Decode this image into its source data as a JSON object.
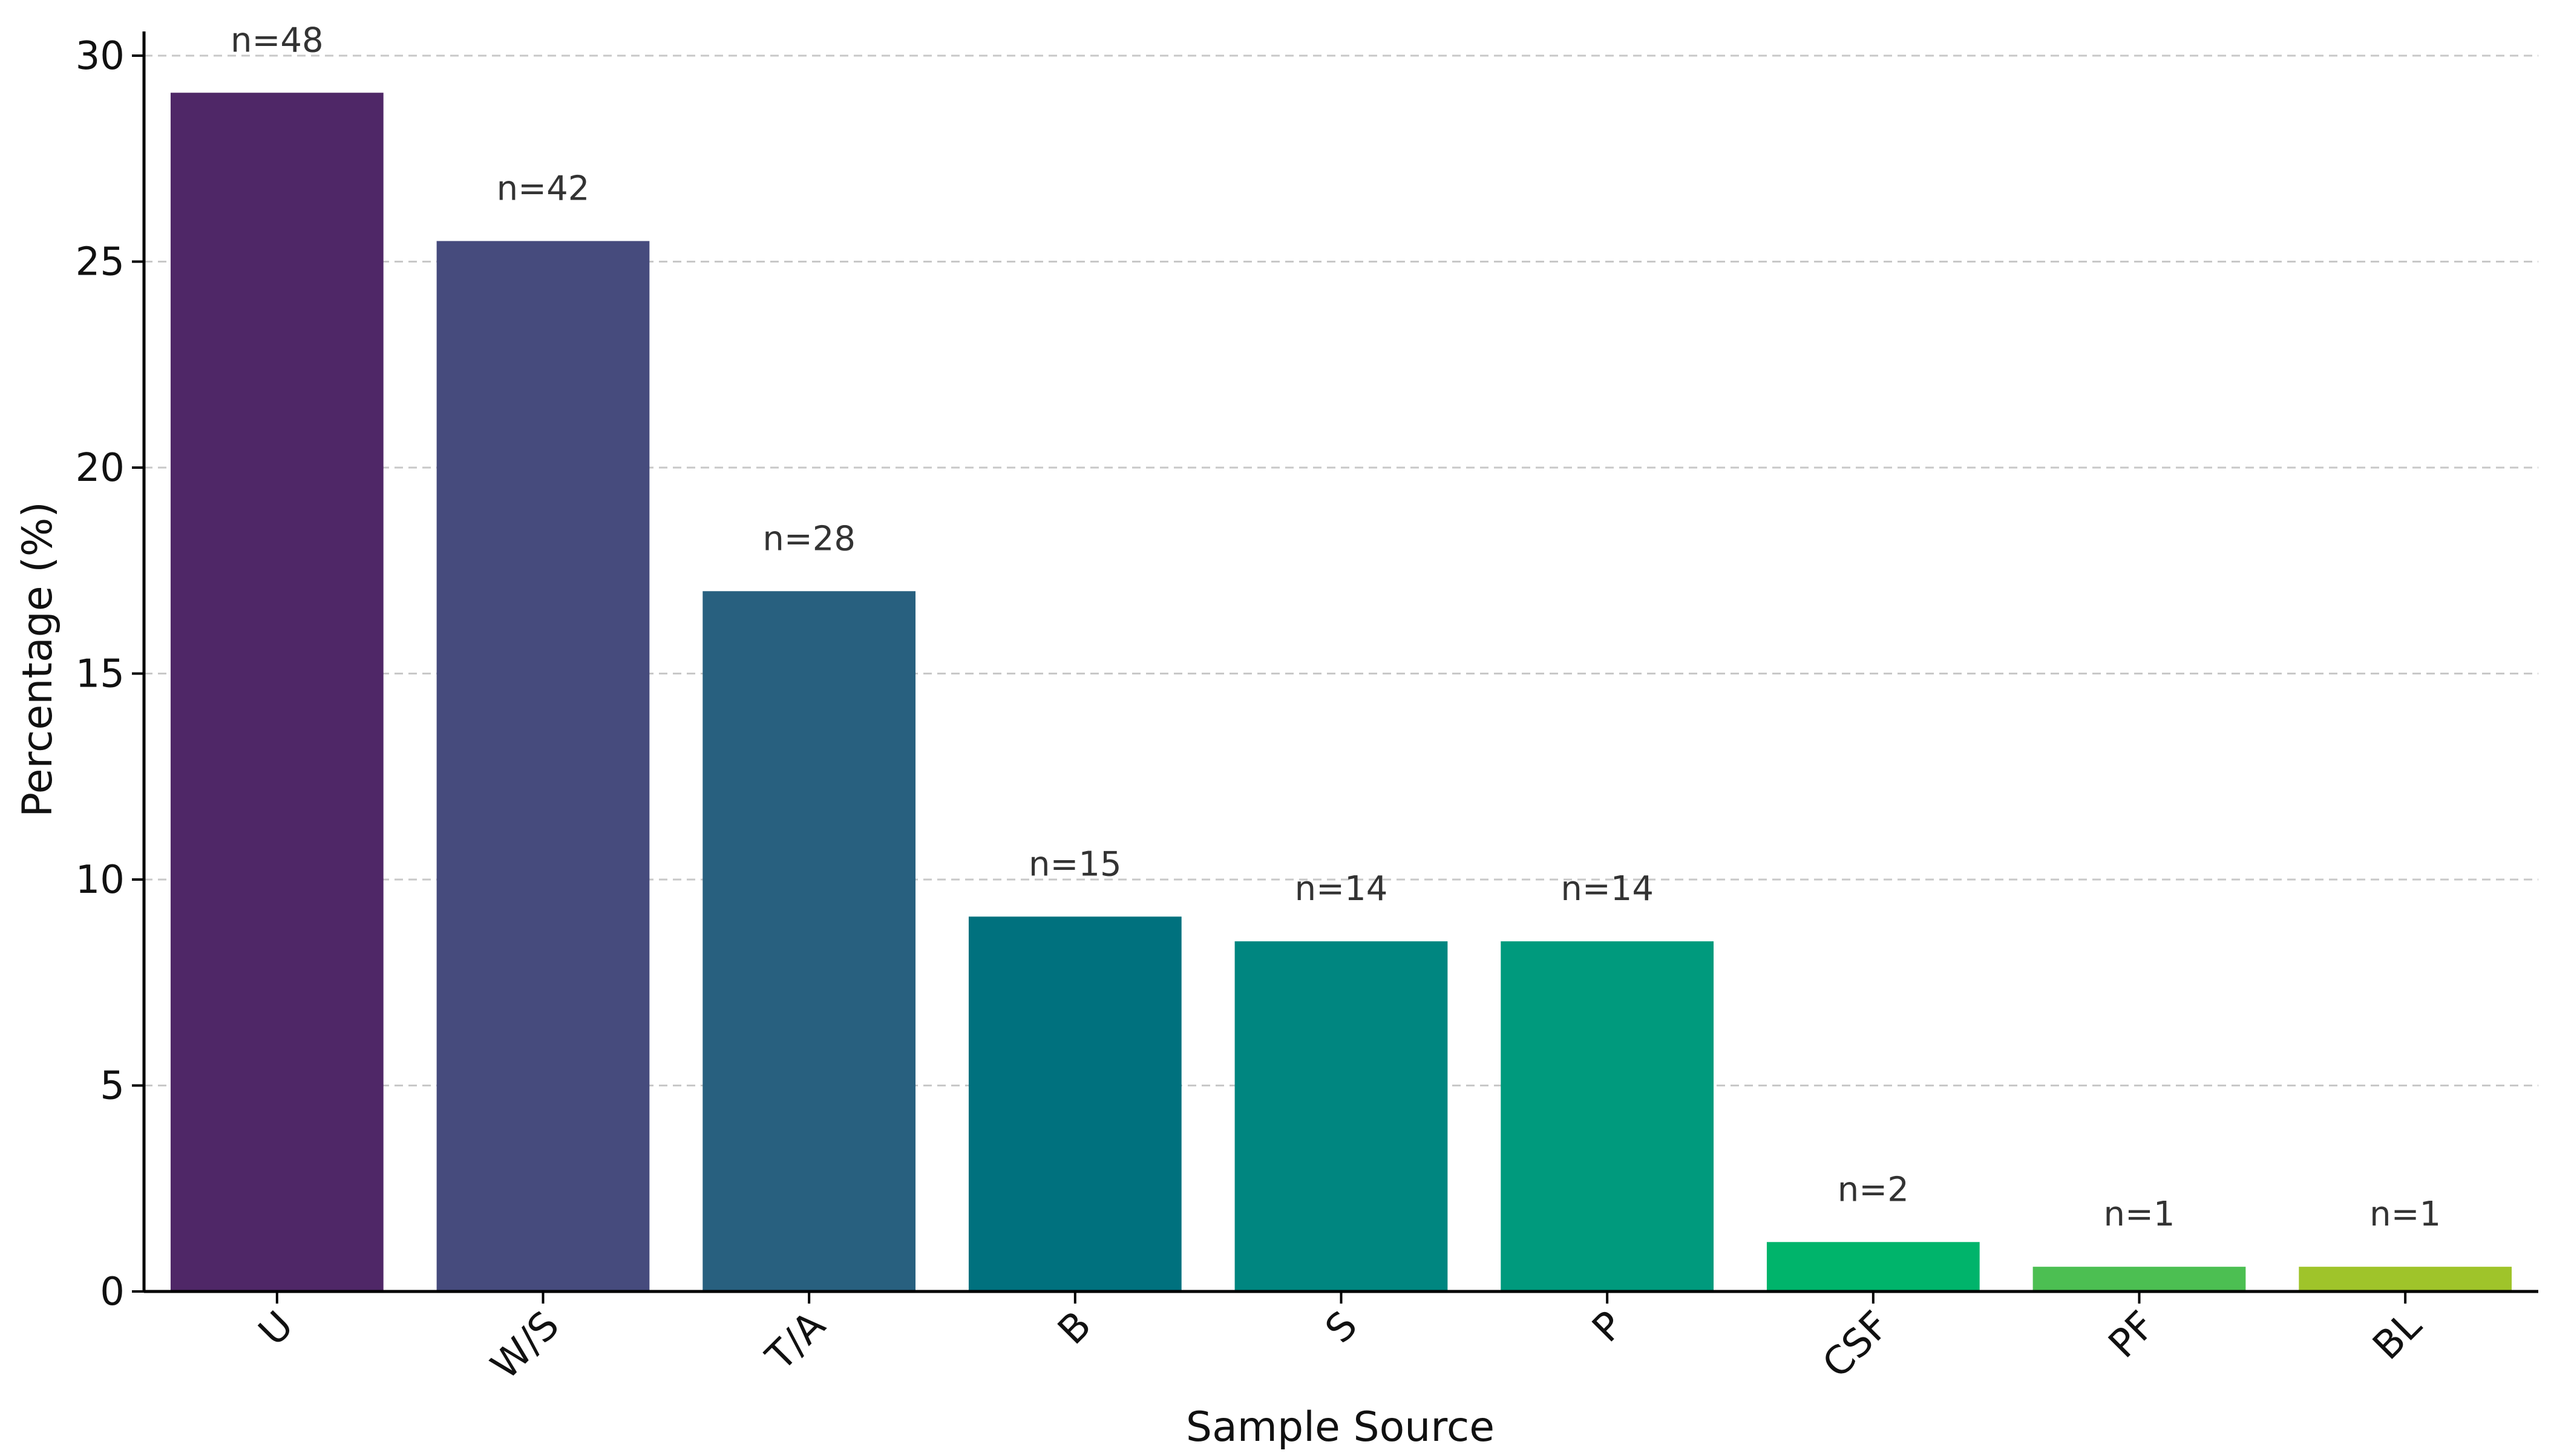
{
  "chart_data": {
    "type": "bar",
    "title": "",
    "xlabel": "Sample Source",
    "ylabel": "Percentage (%)",
    "ylim": [
      0,
      30
    ],
    "yticks": [
      0,
      5,
      10,
      15,
      20,
      25,
      30
    ],
    "grid": "y dashed",
    "categories": [
      "U",
      "W/S",
      "T/A",
      "B",
      "S",
      "P",
      "CSF",
      "PF",
      "BL"
    ],
    "values": [
      29.1,
      25.5,
      17.0,
      9.1,
      8.5,
      8.5,
      1.2,
      0.6,
      0.6
    ],
    "counts": [
      "n=48",
      "n=42",
      "n=28",
      "n=15",
      "n=14",
      "n=14",
      "n=2",
      "n=1",
      "n=1"
    ],
    "colors": [
      "#4f2767",
      "#464b7d",
      "#28607f",
      "#00717e",
      "#008680",
      "#009a7d",
      "#00b46b",
      "#4cbf52",
      "#9fc42a"
    ]
  }
}
